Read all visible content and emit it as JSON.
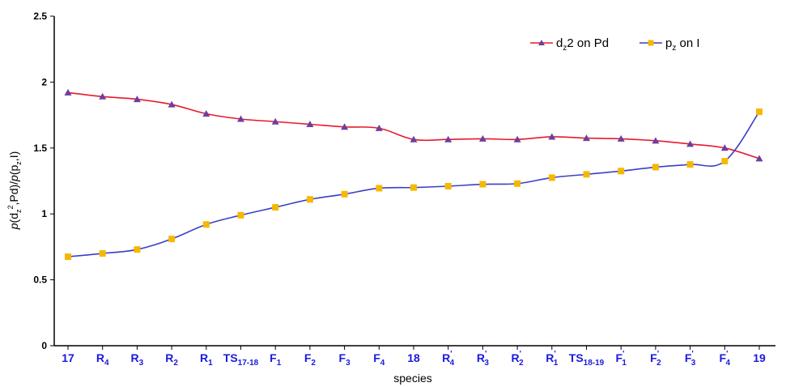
{
  "chart_data": {
    "type": "line",
    "xlabel": "species",
    "ylabel": "p(dz2,Pd)/p(pz,I)",
    "ylim": [
      0,
      2.5
    ],
    "yticks": [
      "0",
      "0.5",
      "1",
      "1.5",
      "2",
      "2.5"
    ],
    "grid": false,
    "legend_position": "top-right",
    "categories": [
      {
        "main": "17",
        "sub": "",
        "prime": false
      },
      {
        "main": "R",
        "sub": "4",
        "prime": false
      },
      {
        "main": "R",
        "sub": "3",
        "prime": false
      },
      {
        "main": "R",
        "sub": "2",
        "prime": false
      },
      {
        "main": "R",
        "sub": "1",
        "prime": false
      },
      {
        "main": "TS",
        "sub": "17-18",
        "prime": false
      },
      {
        "main": "F",
        "sub": "1",
        "prime": false
      },
      {
        "main": "F",
        "sub": "2",
        "prime": false
      },
      {
        "main": "F",
        "sub": "3",
        "prime": false
      },
      {
        "main": "F",
        "sub": "4",
        "prime": false
      },
      {
        "main": "18",
        "sub": "",
        "prime": false
      },
      {
        "main": "R",
        "sub": "4",
        "prime": true
      },
      {
        "main": "R",
        "sub": "3",
        "prime": true
      },
      {
        "main": "R",
        "sub": "2",
        "prime": true
      },
      {
        "main": "R",
        "sub": "1",
        "prime": true
      },
      {
        "main": "TS",
        "sub": "18-19",
        "prime": false
      },
      {
        "main": "F",
        "sub": "1",
        "prime": true
      },
      {
        "main": "F",
        "sub": "2",
        "prime": true
      },
      {
        "main": "F",
        "sub": "3",
        "prime": true
      },
      {
        "main": "F",
        "sub": "4",
        "prime": true
      },
      {
        "main": "19",
        "sub": "",
        "prime": false
      }
    ],
    "series": [
      {
        "name": "dz2 on Pd",
        "legend_main": "d",
        "legend_sub": "z",
        "legend_rest": "2 on Pd",
        "color": "#e8192c",
        "marker": "triangle",
        "marker_color": "#6b3fa0",
        "values": [
          1.92,
          1.89,
          1.87,
          1.83,
          1.76,
          1.72,
          1.7,
          1.68,
          1.66,
          1.65,
          1.565,
          1.565,
          1.57,
          1.565,
          1.585,
          1.575,
          1.57,
          1.555,
          1.53,
          1.5,
          1.42
        ]
      },
      {
        "name": "pz on I",
        "legend_main": "p",
        "legend_sub": "z",
        "legend_rest": " on I",
        "color": "#3b3fc8",
        "marker": "square",
        "marker_color": "#f5b800",
        "values": [
          0.675,
          0.7,
          0.73,
          0.81,
          0.92,
          0.99,
          1.05,
          1.11,
          1.15,
          1.195,
          1.2,
          1.21,
          1.225,
          1.23,
          1.275,
          1.3,
          1.325,
          1.355,
          1.375,
          1.4,
          1.775
        ]
      }
    ]
  }
}
